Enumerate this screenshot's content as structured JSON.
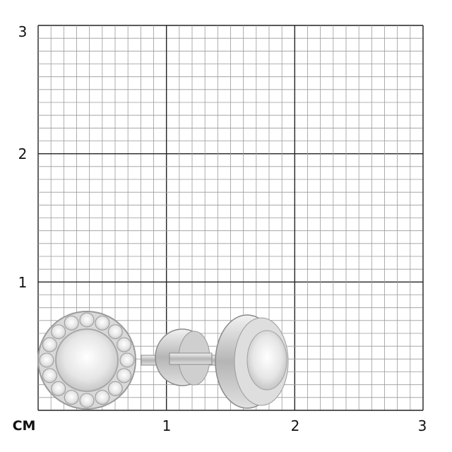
{
  "scale": {
    "unit_label": "CM",
    "x_labels": [
      "1",
      "2",
      "3"
    ],
    "y_labels": [
      "3",
      "2",
      "1"
    ],
    "minor_divisions_per_unit": 10,
    "range_cm": [
      0,
      3
    ]
  },
  "product": {
    "description_icon": "halo-stud-earrings",
    "metal_color": "#c8c8c8"
  }
}
